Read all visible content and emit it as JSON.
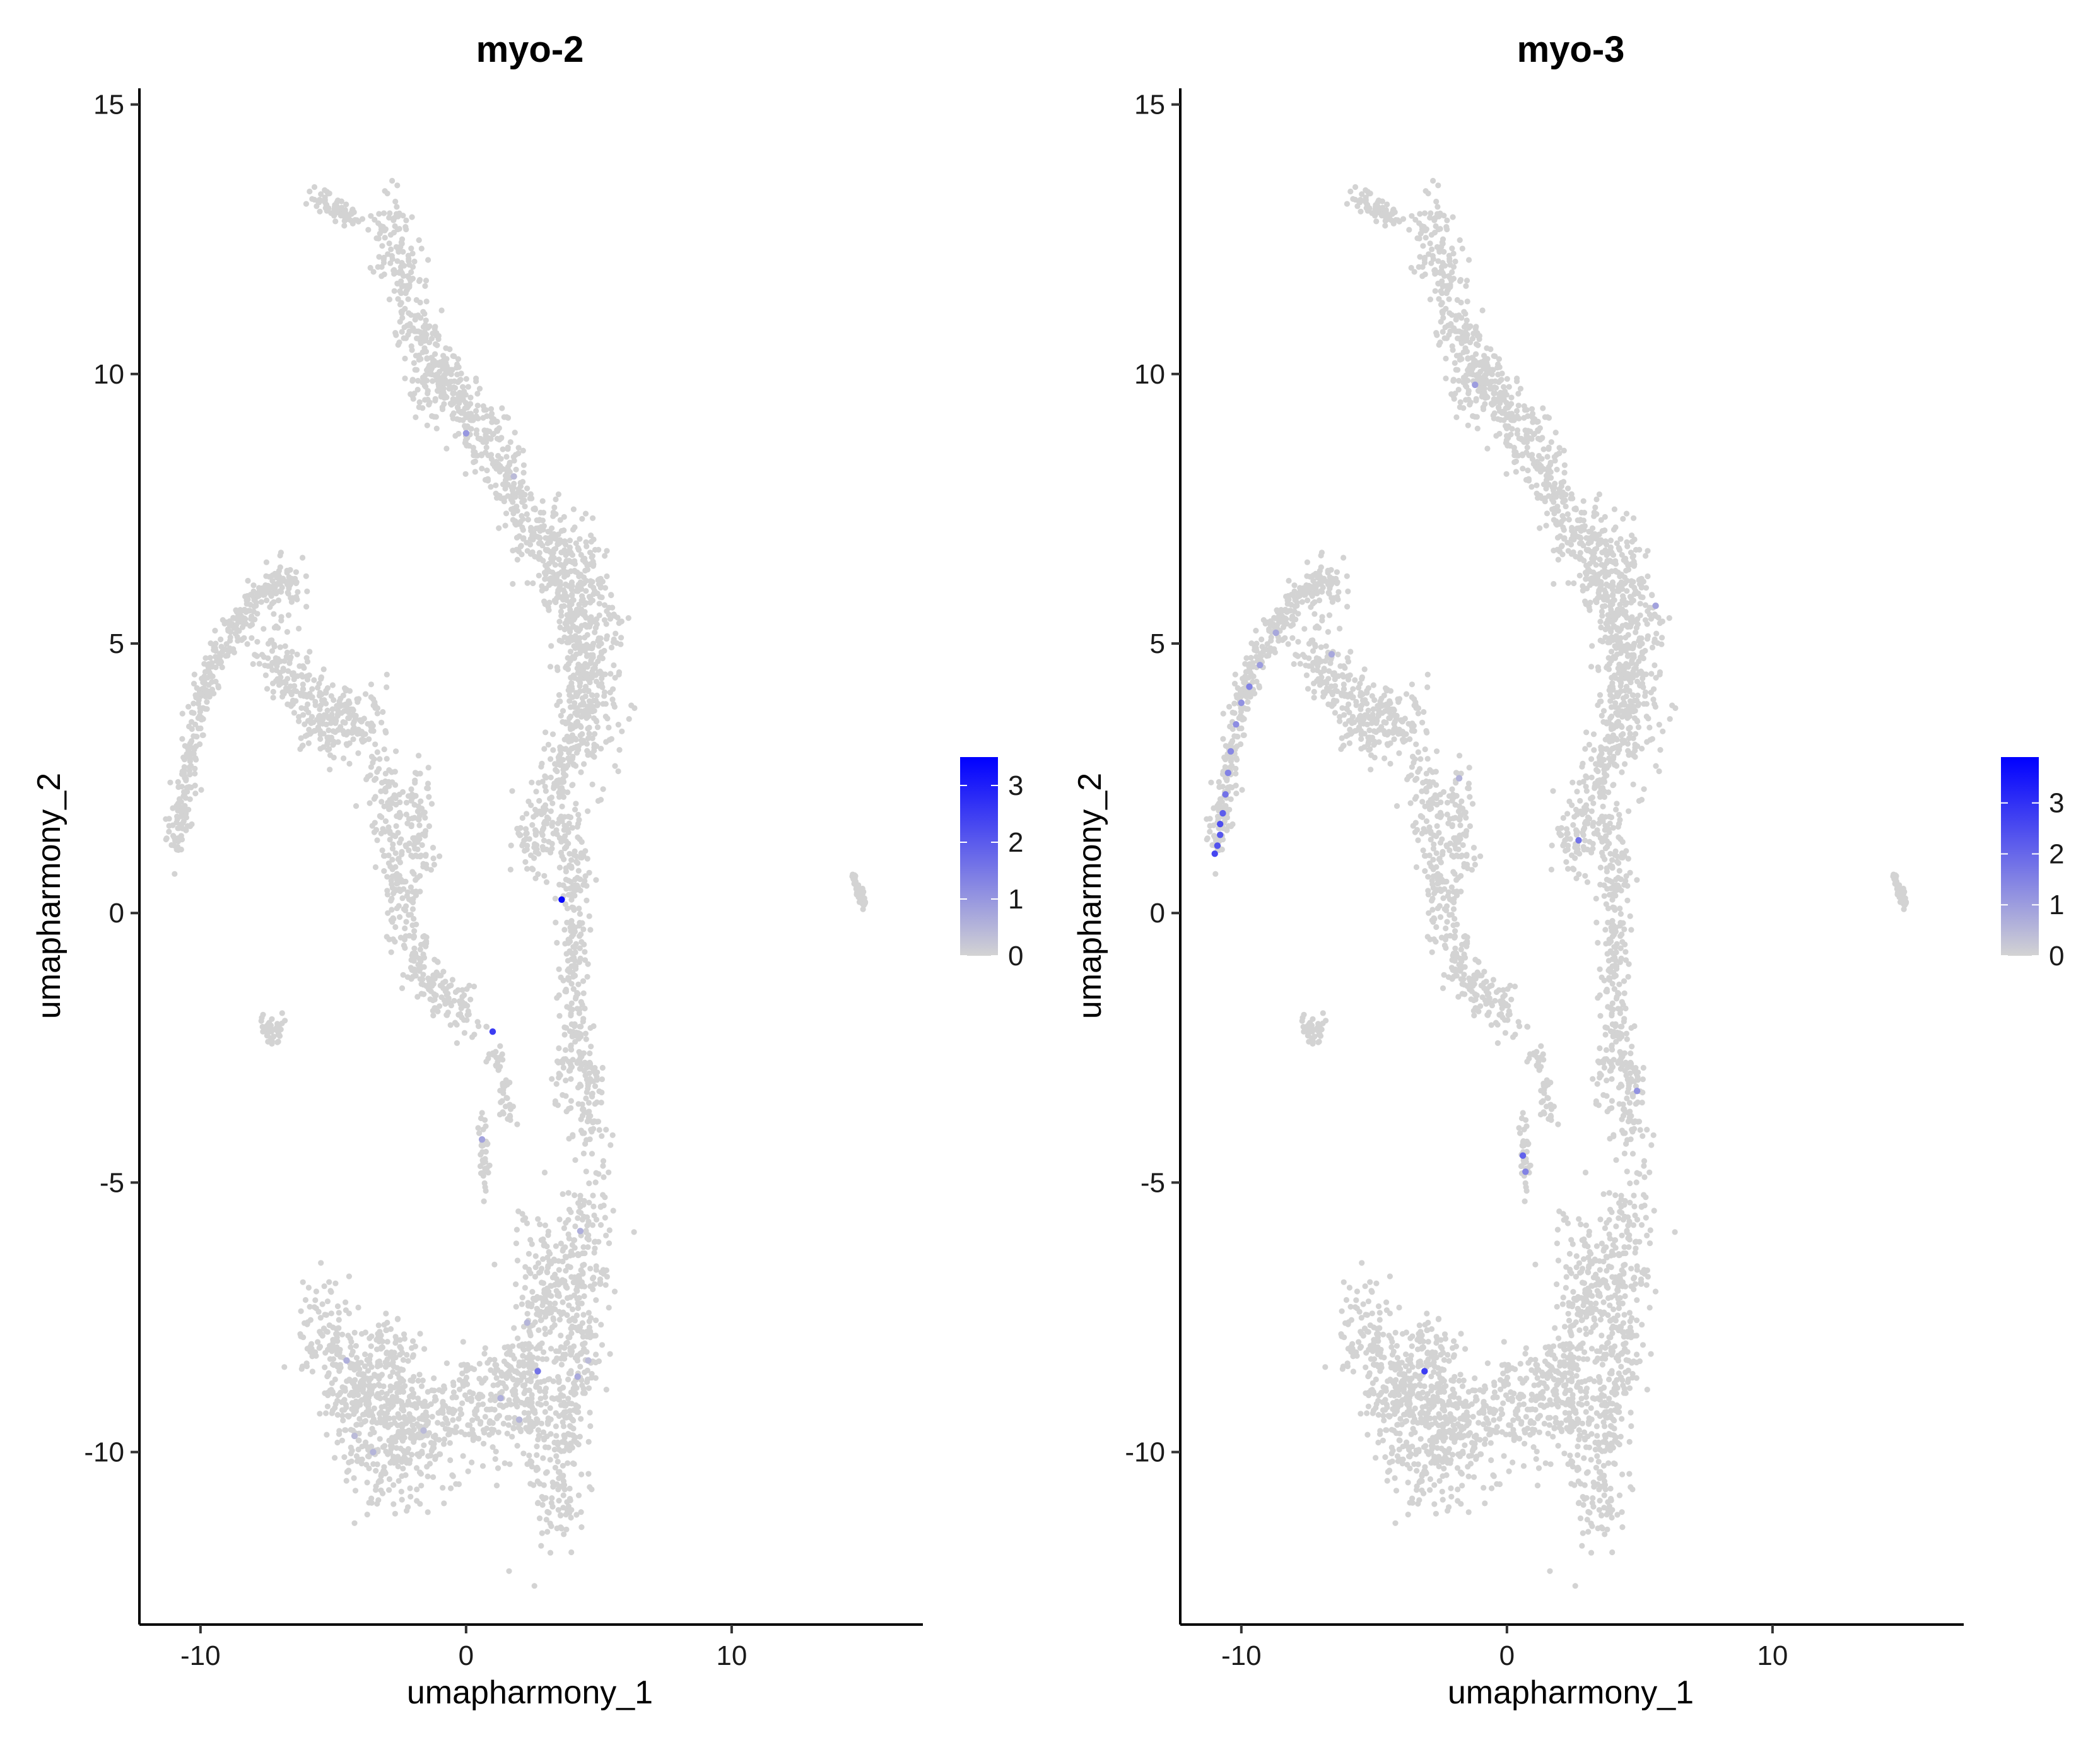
{
  "chart_data": [
    {
      "type": "scatter",
      "title": "myo-2",
      "xlabel": "umapharmony_1",
      "ylabel": "umapharmony_2",
      "xlim": [
        -12.3,
        17.2
      ],
      "ylim": [
        -13.2,
        15.3
      ],
      "xticks": [
        -10,
        0,
        10
      ],
      "xtick_labels": [
        "-10",
        "0",
        "10"
      ],
      "yticks": [
        -10,
        -5,
        0,
        5,
        10,
        15
      ],
      "ytick_labels": [
        "-10",
        "-5",
        "0",
        "5",
        "10",
        "15"
      ],
      "grid": false,
      "legend": {
        "position": "right",
        "type": "colorbar",
        "min": 0,
        "max": 3.5,
        "ticks": [
          0,
          1,
          2,
          3
        ],
        "tick_labels": [
          "0",
          "1",
          "2",
          "3"
        ],
        "low_color": "#d3d3d3",
        "high_color": "#0000ff"
      },
      "background_point_color": "#d3d3d3",
      "highlighted_points": [
        {
          "x": 3.6,
          "y": 0.25,
          "value": 3.4
        },
        {
          "x": 1.0,
          "y": -2.2,
          "value": 2.5
        },
        {
          "x": 2.7,
          "y": -8.5,
          "value": 1.6
        },
        {
          "x": 0.0,
          "y": 8.9,
          "value": 1.0
        },
        {
          "x": 0.6,
          "y": -4.2,
          "value": 0.8
        },
        {
          "x": 4.2,
          "y": -8.6,
          "value": 0.7
        },
        {
          "x": 4.3,
          "y": -5.9,
          "value": 0.6
        },
        {
          "x": 1.3,
          "y": -9.0,
          "value": 0.6
        },
        {
          "x": -4.5,
          "y": -8.3,
          "value": 0.6
        },
        {
          "x": -3.5,
          "y": -10.0,
          "value": 0.5
        },
        {
          "x": 1.8,
          "y": 8.1,
          "value": 0.4
        },
        {
          "x": 2.3,
          "y": -7.6,
          "value": 0.5
        },
        {
          "x": 2.0,
          "y": -9.4,
          "value": 0.5
        },
        {
          "x": -1.6,
          "y": -9.6,
          "value": 0.4
        },
        {
          "x": -4.2,
          "y": -9.7,
          "value": 0.4
        },
        {
          "x": 4.6,
          "y": -8.3,
          "value": 0.4
        }
      ]
    },
    {
      "type": "scatter",
      "title": "myo-3",
      "xlabel": "umapharmony_1",
      "ylabel": "umapharmony_2",
      "xlim": [
        -12.3,
        17.2
      ],
      "ylim": [
        -13.2,
        15.3
      ],
      "xticks": [
        -10,
        0,
        10
      ],
      "xtick_labels": [
        "-10",
        "0",
        "10"
      ],
      "yticks": [
        -10,
        -5,
        0,
        5,
        10,
        15
      ],
      "ytick_labels": [
        "-10",
        "-5",
        "0",
        "5",
        "10",
        "15"
      ],
      "grid": false,
      "legend": {
        "position": "right",
        "type": "colorbar",
        "min": 0,
        "max": 3.9,
        "ticks": [
          0,
          1,
          2,
          3
        ],
        "tick_labels": [
          "0",
          "1",
          "2",
          "3"
        ],
        "low_color": "#d3d3d3",
        "high_color": "#0000ff"
      },
      "background_point_color": "#d3d3d3",
      "highlighted_points": [
        {
          "x": -11.0,
          "y": 1.1,
          "value": 2.6
        },
        {
          "x": -10.9,
          "y": 1.25,
          "value": 2.4
        },
        {
          "x": -10.8,
          "y": 1.45,
          "value": 2.3
        },
        {
          "x": -10.8,
          "y": 1.65,
          "value": 2.5
        },
        {
          "x": -10.7,
          "y": 1.85,
          "value": 2.2
        },
        {
          "x": -10.6,
          "y": 2.2,
          "value": 1.8
        },
        {
          "x": -10.5,
          "y": 2.6,
          "value": 1.5
        },
        {
          "x": -10.4,
          "y": 3.0,
          "value": 1.4
        },
        {
          "x": -10.2,
          "y": 3.5,
          "value": 1.3
        },
        {
          "x": -10.0,
          "y": 3.9,
          "value": 1.2
        },
        {
          "x": -9.7,
          "y": 4.2,
          "value": 1.5
        },
        {
          "x": -9.3,
          "y": 4.6,
          "value": 1.0
        },
        {
          "x": -8.7,
          "y": 5.2,
          "value": 0.8
        },
        {
          "x": -6.6,
          "y": 4.8,
          "value": 0.8
        },
        {
          "x": -3.1,
          "y": -8.5,
          "value": 2.8
        },
        {
          "x": 0.6,
          "y": -4.5,
          "value": 2.1
        },
        {
          "x": 0.7,
          "y": -4.8,
          "value": 1.5
        },
        {
          "x": 2.7,
          "y": 1.35,
          "value": 1.8
        },
        {
          "x": -1.2,
          "y": 9.8,
          "value": 1.0
        },
        {
          "x": 4.9,
          "y": -3.3,
          "value": 1.2
        },
        {
          "x": 5.6,
          "y": 5.7,
          "value": 0.9
        },
        {
          "x": -1.8,
          "y": 2.5,
          "value": 0.6
        }
      ]
    }
  ]
}
